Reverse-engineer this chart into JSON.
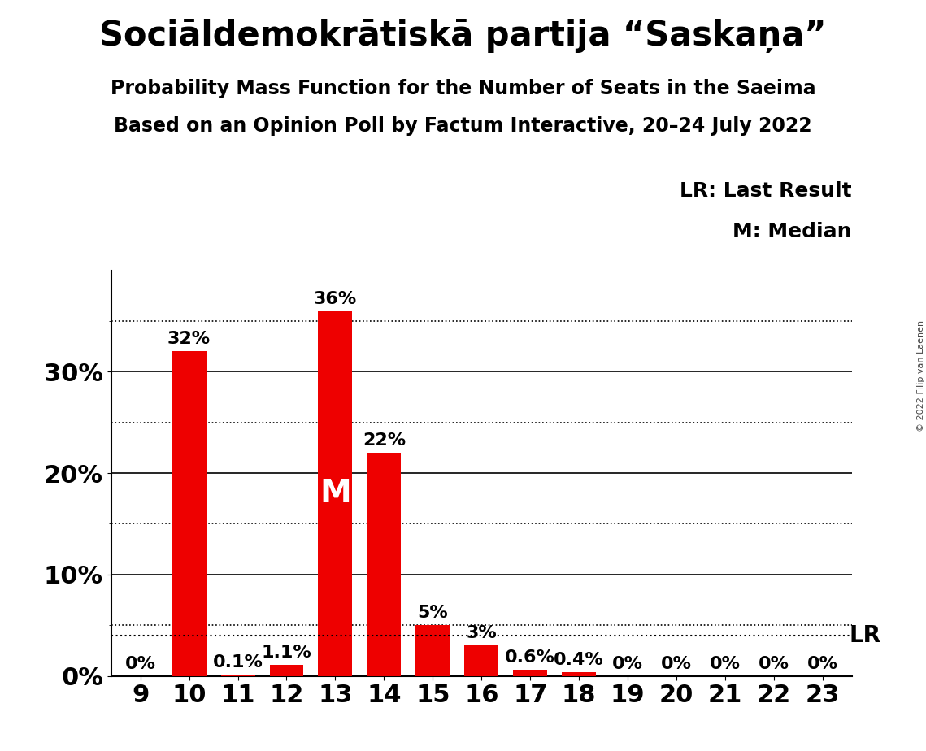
{
  "title_actual": "Sociāldemokrātiskā partija “Saskaņa”",
  "subtitle1": "Probability Mass Function for the Number of Seats in the Saeima",
  "subtitle2": "Based on an Opinion Poll by Factum Interactive, 20–24 July 2022",
  "copyright": "© 2022 Filip van Laenen",
  "seats": [
    9,
    10,
    11,
    12,
    13,
    14,
    15,
    16,
    17,
    18,
    19,
    20,
    21,
    22,
    23
  ],
  "probabilities": [
    0.0,
    32.0,
    0.1,
    1.1,
    36.0,
    22.0,
    5.0,
    3.0,
    0.6,
    0.4,
    0.0,
    0.0,
    0.0,
    0.0,
    0.0
  ],
  "bar_color": "#ee0000",
  "median_seat": 13,
  "lr_value": 4.0,
  "legend_lr": "LR: Last Result",
  "legend_m": "M: Median",
  "yticks": [
    0,
    10,
    20,
    30
  ],
  "ytick_labels": [
    "0%",
    "10%",
    "20%",
    "30%"
  ],
  "ymax": 40,
  "background_color": "#ffffff",
  "text_color": "#000000",
  "median_label_color": "#ffffff"
}
